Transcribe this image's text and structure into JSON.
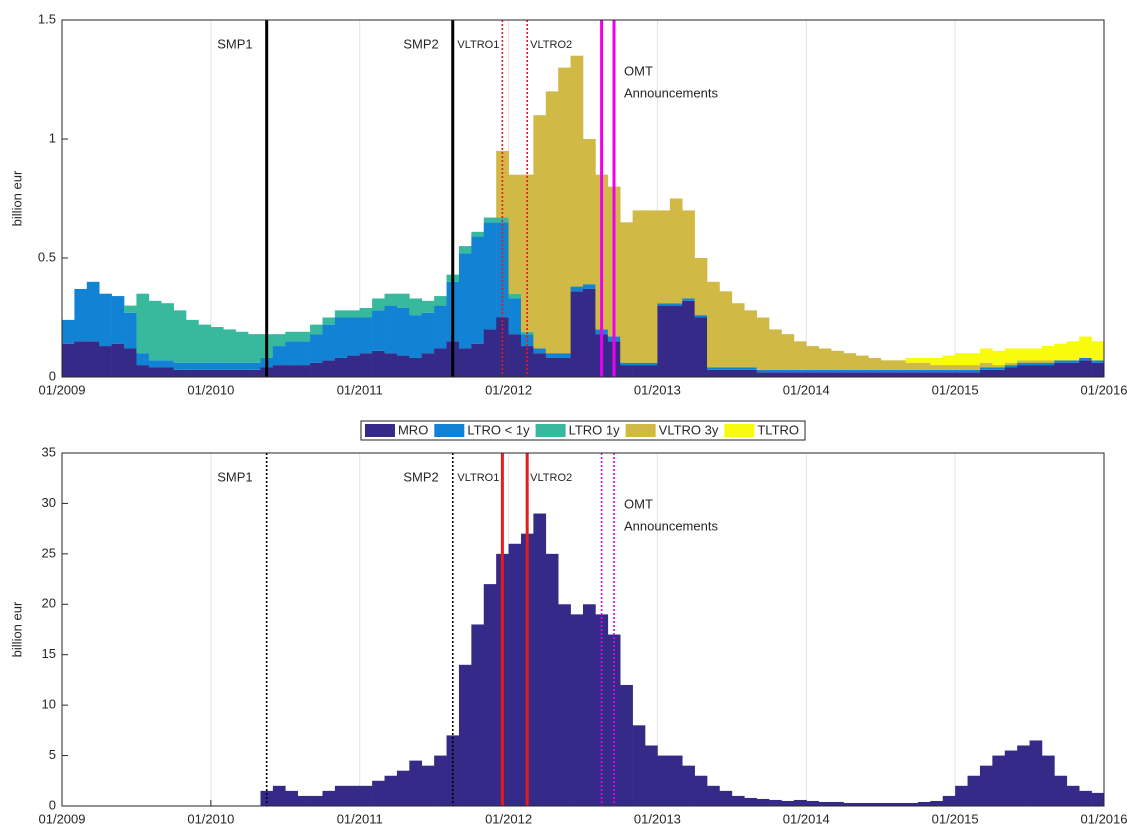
{
  "chart_data": [
    {
      "type": "stacked_bar",
      "ylabel": "billion eur",
      "x": [
        "01/2009",
        "02/2009",
        "03/2009",
        "04/2009",
        "05/2009",
        "06/2009",
        "07/2009",
        "08/2009",
        "09/2009",
        "10/2009",
        "11/2009",
        "12/2009",
        "01/2010",
        "02/2010",
        "03/2010",
        "04/2010",
        "05/2010",
        "06/2010",
        "07/2010",
        "08/2010",
        "09/2010",
        "10/2010",
        "11/2010",
        "12/2010",
        "01/2011",
        "02/2011",
        "03/2011",
        "04/2011",
        "05/2011",
        "06/2011",
        "07/2011",
        "08/2011",
        "09/2011",
        "10/2011",
        "11/2011",
        "12/2011",
        "01/2012",
        "02/2012",
        "03/2012",
        "04/2012",
        "05/2012",
        "06/2012",
        "07/2012",
        "08/2012",
        "09/2012",
        "10/2012",
        "11/2012",
        "12/2012",
        "01/2013",
        "02/2013",
        "03/2013",
        "04/2013",
        "05/2013",
        "06/2013",
        "07/2013",
        "08/2013",
        "09/2013",
        "10/2013",
        "11/2013",
        "12/2013",
        "01/2014",
        "02/2014",
        "03/2014",
        "04/2014",
        "05/2014",
        "06/2014",
        "07/2014",
        "08/2014",
        "09/2014",
        "10/2014",
        "11/2014",
        "12/2014",
        "01/2015",
        "02/2015",
        "03/2015",
        "04/2015",
        "05/2015",
        "06/2015",
        "07/2015",
        "08/2015",
        "09/2015",
        "10/2015",
        "11/2015",
        "12/2015"
      ],
      "series": [
        {
          "name": "MRO",
          "color": "#352a87",
          "values": [
            0.14,
            0.15,
            0.15,
            0.13,
            0.14,
            0.12,
            0.05,
            0.04,
            0.04,
            0.03,
            0.03,
            0.03,
            0.03,
            0.03,
            0.03,
            0.03,
            0.04,
            0.05,
            0.05,
            0.05,
            0.06,
            0.07,
            0.08,
            0.09,
            0.1,
            0.11,
            0.1,
            0.09,
            0.08,
            0.1,
            0.12,
            0.15,
            0.12,
            0.14,
            0.2,
            0.25,
            0.18,
            0.13,
            0.1,
            0.08,
            0.08,
            0.36,
            0.37,
            0.18,
            0.15,
            0.05,
            0.05,
            0.05,
            0.3,
            0.3,
            0.32,
            0.25,
            0.03,
            0.03,
            0.03,
            0.03,
            0.02,
            0.02,
            0.02,
            0.02,
            0.02,
            0.02,
            0.02,
            0.02,
            0.02,
            0.02,
            0.02,
            0.02,
            0.02,
            0.02,
            0.02,
            0.02,
            0.02,
            0.02,
            0.03,
            0.03,
            0.04,
            0.05,
            0.05,
            0.05,
            0.06,
            0.06,
            0.07,
            0.06
          ]
        },
        {
          "name": "LTRO < 1y",
          "color": "#1283d4",
          "values": [
            0.1,
            0.22,
            0.25,
            0.22,
            0.2,
            0.15,
            0.05,
            0.03,
            0.03,
            0.03,
            0.03,
            0.03,
            0.03,
            0.03,
            0.03,
            0.03,
            0.04,
            0.08,
            0.1,
            0.1,
            0.12,
            0.15,
            0.17,
            0.16,
            0.15,
            0.17,
            0.2,
            0.2,
            0.18,
            0.17,
            0.18,
            0.25,
            0.4,
            0.45,
            0.45,
            0.4,
            0.15,
            0.05,
            0.02,
            0.02,
            0.02,
            0.02,
            0.02,
            0.02,
            0.02,
            0.01,
            0.01,
            0.01,
            0.01,
            0.01,
            0.01,
            0.01,
            0.01,
            0.01,
            0.01,
            0.01,
            0.01,
            0.01,
            0.01,
            0.01,
            0.01,
            0.01,
            0.01,
            0.01,
            0.01,
            0.01,
            0.01,
            0.01,
            0.01,
            0.01,
            0.01,
            0.01,
            0.01,
            0.01,
            0.01,
            0.01,
            0.01,
            0.01,
            0.01,
            0.01,
            0.01,
            0.01,
            0.01,
            0.01
          ]
        },
        {
          "name": "LTRO 1y",
          "color": "#38b99e",
          "values": [
            0,
            0,
            0,
            0,
            0,
            0.03,
            0.25,
            0.25,
            0.24,
            0.22,
            0.18,
            0.16,
            0.15,
            0.14,
            0.13,
            0.12,
            0.1,
            0.05,
            0.04,
            0.04,
            0.04,
            0.03,
            0.03,
            0.03,
            0.04,
            0.05,
            0.05,
            0.06,
            0.07,
            0.05,
            0.04,
            0.03,
            0.03,
            0.02,
            0.02,
            0.02,
            0.02,
            0.01,
            0,
            0,
            0,
            0,
            0,
            0,
            0,
            0,
            0,
            0,
            0,
            0,
            0,
            0,
            0,
            0,
            0,
            0,
            0,
            0,
            0,
            0,
            0,
            0,
            0,
            0,
            0,
            0,
            0,
            0,
            0,
            0,
            0,
            0,
            0,
            0,
            0,
            0,
            0,
            0,
            0,
            0,
            0,
            0,
            0,
            0
          ]
        },
        {
          "name": "VLTRO 3y",
          "color": "#d1b946",
          "values": [
            0,
            0,
            0,
            0,
            0,
            0,
            0,
            0,
            0,
            0,
            0,
            0,
            0,
            0,
            0,
            0,
            0,
            0,
            0,
            0,
            0,
            0,
            0,
            0,
            0,
            0,
            0,
            0,
            0,
            0,
            0,
            0,
            0,
            0,
            0,
            0.28,
            0.5,
            0.66,
            0.98,
            1.1,
            1.2,
            0.97,
            0.61,
            0.65,
            0.63,
            0.59,
            0.64,
            0.64,
            0.39,
            0.44,
            0.37,
            0.24,
            0.36,
            0.32,
            0.27,
            0.24,
            0.22,
            0.17,
            0.15,
            0.12,
            0.1,
            0.09,
            0.08,
            0.07,
            0.06,
            0.05,
            0.04,
            0.04,
            0.03,
            0.03,
            0.02,
            0.02,
            0.02,
            0.02,
            0.02,
            0.01,
            0.01,
            0.01,
            0.01,
            0.01,
            0,
            0,
            0,
            0
          ]
        },
        {
          "name": "TLTRO",
          "color": "#f9fb0e",
          "values": [
            0,
            0,
            0,
            0,
            0,
            0,
            0,
            0,
            0,
            0,
            0,
            0,
            0,
            0,
            0,
            0,
            0,
            0,
            0,
            0,
            0,
            0,
            0,
            0,
            0,
            0,
            0,
            0,
            0,
            0,
            0,
            0,
            0,
            0,
            0,
            0,
            0,
            0,
            0,
            0,
            0,
            0,
            0,
            0,
            0,
            0,
            0,
            0,
            0,
            0,
            0,
            0,
            0,
            0,
            0,
            0,
            0,
            0,
            0,
            0,
            0,
            0,
            0,
            0,
            0,
            0,
            0,
            0,
            0.02,
            0.02,
            0.03,
            0.04,
            0.05,
            0.05,
            0.06,
            0.06,
            0.06,
            0.05,
            0.05,
            0.06,
            0.07,
            0.08,
            0.09,
            0.08
          ]
        }
      ],
      "xlim": [
        "01/2009",
        "01/2016"
      ],
      "xticks": [
        "01/2009",
        "01/2010",
        "01/2011",
        "01/2012",
        "01/2013",
        "01/2014",
        "01/2015",
        "01/2016"
      ],
      "ylim": [
        0,
        1.5
      ],
      "yticks": [
        0,
        0.5,
        1,
        1.5
      ],
      "grid": true,
      "events": [
        {
          "label": [
            "SMP1"
          ],
          "x": "05/2010",
          "color": "#000000",
          "style": "solid"
        },
        {
          "label": [
            "SMP2"
          ],
          "x": "08/2011",
          "color": "#000000",
          "style": "solid"
        },
        {
          "label": [
            "VLTRO1"
          ],
          "x": "12/2011",
          "color": "#e41a1c",
          "style": "dotted"
        },
        {
          "label": [
            "VLTRO2"
          ],
          "x": "02/2012",
          "color": "#e41a1c",
          "style": "dotted"
        },
        {
          "label": [
            "OMT",
            "Announcements"
          ],
          "x": "08/2012",
          "x2": "09/2012",
          "color": "#ee00ee",
          "style": "solid"
        }
      ]
    },
    {
      "type": "bar",
      "ylabel": "billion eur",
      "color": "#352a87",
      "x": [
        "01/2009",
        "02/2009",
        "03/2009",
        "04/2009",
        "05/2009",
        "06/2009",
        "07/2009",
        "08/2009",
        "09/2009",
        "10/2009",
        "11/2009",
        "12/2009",
        "01/2010",
        "02/2010",
        "03/2010",
        "04/2010",
        "05/2010",
        "06/2010",
        "07/2010",
        "08/2010",
        "09/2010",
        "10/2010",
        "11/2010",
        "12/2010",
        "01/2011",
        "02/2011",
        "03/2011",
        "04/2011",
        "05/2011",
        "06/2011",
        "07/2011",
        "08/2011",
        "09/2011",
        "10/2011",
        "11/2011",
        "12/2011",
        "01/2012",
        "02/2012",
        "03/2012",
        "04/2012",
        "05/2012",
        "06/2012",
        "07/2012",
        "08/2012",
        "09/2012",
        "10/2012",
        "11/2012",
        "12/2012",
        "01/2013",
        "02/2013",
        "03/2013",
        "04/2013",
        "05/2013",
        "06/2013",
        "07/2013",
        "08/2013",
        "09/2013",
        "10/2013",
        "11/2013",
        "12/2013",
        "01/2014",
        "02/2014",
        "03/2014",
        "04/2014",
        "05/2014",
        "06/2014",
        "07/2014",
        "08/2014",
        "09/2014",
        "10/2014",
        "11/2014",
        "12/2014",
        "01/2015",
        "02/2015",
        "03/2015",
        "04/2015",
        "05/2015",
        "06/2015",
        "07/2015",
        "08/2015",
        "09/2015",
        "10/2015",
        "11/2015",
        "12/2015"
      ],
      "values": [
        0,
        0,
        0,
        0,
        0,
        0,
        0,
        0,
        0,
        0,
        0,
        0,
        0,
        0,
        0,
        0,
        1.5,
        2,
        1.5,
        1,
        1,
        1.5,
        2,
        2,
        2,
        2.5,
        3,
        3.5,
        4.5,
        4,
        5,
        7,
        14,
        18,
        22,
        25,
        26,
        27,
        29,
        25,
        20,
        19,
        20,
        19,
        17,
        12,
        8,
        6,
        5,
        5,
        4,
        3,
        2,
        1.5,
        1,
        0.8,
        0.7,
        0.6,
        0.5,
        0.6,
        0.5,
        0.4,
        0.4,
        0.3,
        0.3,
        0.3,
        0.3,
        0.3,
        0.3,
        0.4,
        0.5,
        1,
        2,
        3,
        4,
        5,
        5.5,
        6,
        6.5,
        5,
        3,
        2,
        1.5,
        1.3
      ],
      "xlim": [
        "01/2009",
        "01/2016"
      ],
      "xticks": [
        "01/2009",
        "01/2010",
        "01/2011",
        "01/2012",
        "01/2013",
        "01/2014",
        "01/2015",
        "01/2016"
      ],
      "ylim": [
        0,
        35
      ],
      "yticks": [
        0,
        5,
        10,
        15,
        20,
        25,
        30,
        35
      ],
      "grid": true,
      "events": [
        {
          "label": [
            "SMP1"
          ],
          "x": "05/2010",
          "color": "#000000",
          "style": "dotted"
        },
        {
          "label": [
            "SMP2"
          ],
          "x": "08/2011",
          "color": "#000000",
          "style": "dotted"
        },
        {
          "label": [
            "VLTRO1"
          ],
          "x": "12/2011",
          "color": "#e41a1c",
          "style": "solid"
        },
        {
          "label": [
            "VLTRO2"
          ],
          "x": "02/2012",
          "color": "#e41a1c",
          "style": "solid"
        },
        {
          "label": [
            "OMT",
            "Announcements"
          ],
          "x": "08/2012",
          "x2": "09/2012",
          "color": "#ee00ee",
          "style": "dotted"
        }
      ]
    }
  ]
}
